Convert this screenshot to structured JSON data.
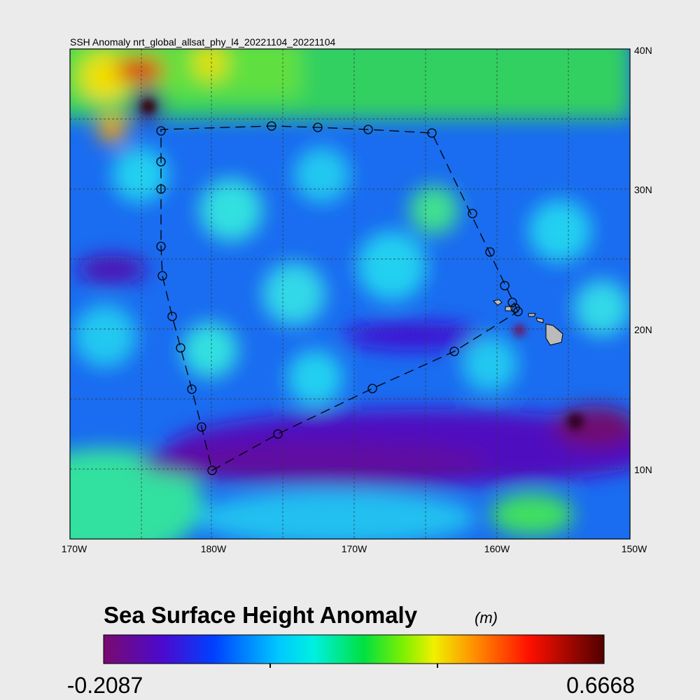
{
  "map": {
    "title": "SSH Anomaly nrt_global_allsat_phy_l4_20221104_20221104",
    "lon_labels": [
      "170W",
      "180W",
      "170W",
      "160W",
      "150W"
    ],
    "lat_labels": [
      "40N",
      "30N",
      "20N",
      "10N"
    ]
  },
  "colorbar": {
    "title": "Sea Surface Height Anomaly",
    "unit": "(m)",
    "min_label": "-0.2087",
    "max_label": "0.6668"
  }
}
